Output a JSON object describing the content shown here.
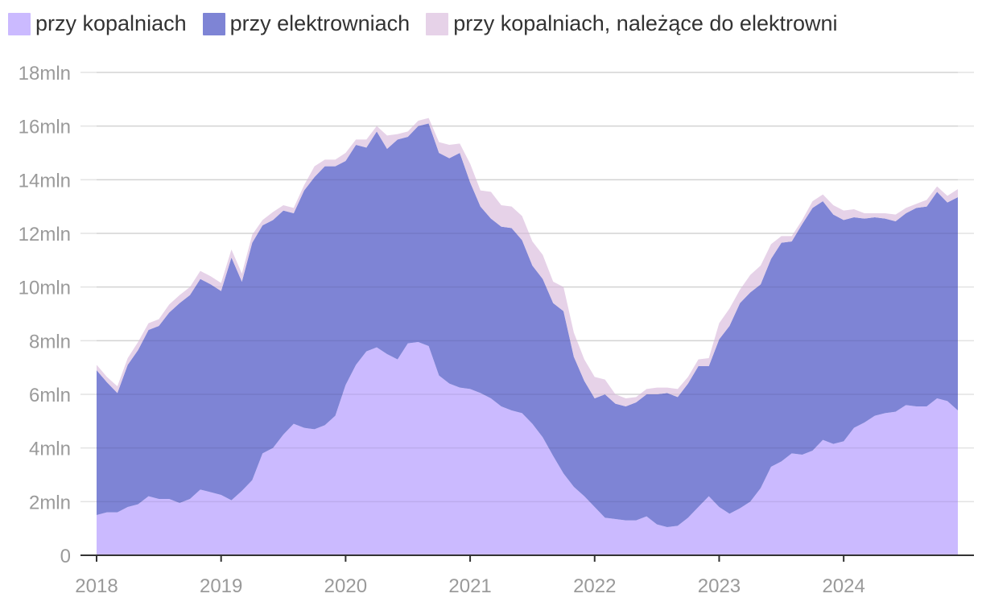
{
  "chart_data": {
    "type": "area",
    "stacked": true,
    "title": "",
    "xlabel": "",
    "ylabel": "",
    "ylim": [
      0,
      18
    ],
    "xlim": [
      2018.0,
      2024.917
    ],
    "y_ticks": [
      {
        "value": 0,
        "label": "0"
      },
      {
        "value": 2,
        "label": "2mln"
      },
      {
        "value": 4,
        "label": "4mln"
      },
      {
        "value": 6,
        "label": "6mln"
      },
      {
        "value": 8,
        "label": "8mln"
      },
      {
        "value": 10,
        "label": "10mln"
      },
      {
        "value": 12,
        "label": "12mln"
      },
      {
        "value": 14,
        "label": "14mln"
      },
      {
        "value": 16,
        "label": "16mln"
      },
      {
        "value": 18,
        "label": "18mln"
      }
    ],
    "x_ticks": [
      {
        "value": 2018,
        "label": "2018"
      },
      {
        "value": 2019,
        "label": "2019"
      },
      {
        "value": 2020,
        "label": "2020"
      },
      {
        "value": 2021,
        "label": "2021"
      },
      {
        "value": 2022,
        "label": "2022"
      },
      {
        "value": 2023,
        "label": "2023"
      },
      {
        "value": 2024,
        "label": "2024"
      }
    ],
    "legend_position": "top-left",
    "series": [
      {
        "name": "przy kopalniach",
        "color": "#cbbaff",
        "x": [
          2018.0,
          2018.083,
          2018.167,
          2018.25,
          2018.333,
          2018.417,
          2018.5,
          2018.583,
          2018.667,
          2018.75,
          2018.833,
          2018.917,
          2019.0,
          2019.083,
          2019.167,
          2019.25,
          2019.333,
          2019.417,
          2019.5,
          2019.583,
          2019.667,
          2019.75,
          2019.833,
          2019.917,
          2020.0,
          2020.083,
          2020.167,
          2020.25,
          2020.333,
          2020.417,
          2020.5,
          2020.583,
          2020.667,
          2020.75,
          2020.833,
          2020.917,
          2021.0,
          2021.083,
          2021.167,
          2021.25,
          2021.333,
          2021.417,
          2021.5,
          2021.583,
          2021.667,
          2021.75,
          2021.833,
          2021.917,
          2022.0,
          2022.083,
          2022.167,
          2022.25,
          2022.333,
          2022.417,
          2022.5,
          2022.583,
          2022.667,
          2022.75,
          2022.833,
          2022.917,
          2023.0,
          2023.083,
          2023.167,
          2023.25,
          2023.333,
          2023.417,
          2023.5,
          2023.583,
          2023.667,
          2023.75,
          2023.833,
          2023.917,
          2024.0,
          2024.083,
          2024.167,
          2024.25,
          2024.333,
          2024.417,
          2024.5,
          2024.583,
          2024.667,
          2024.75,
          2024.833,
          2024.917
        ],
        "values": [
          1.5,
          1.6,
          1.6,
          1.8,
          1.9,
          2.2,
          2.1,
          2.1,
          1.95,
          2.1,
          2.45,
          2.35,
          2.25,
          2.05,
          2.4,
          2.8,
          3.8,
          4.0,
          4.5,
          4.9,
          4.75,
          4.7,
          4.85,
          5.2,
          6.35,
          7.1,
          7.6,
          7.75,
          7.5,
          7.3,
          7.9,
          7.95,
          7.8,
          6.7,
          6.4,
          6.25,
          6.2,
          6.05,
          5.85,
          5.55,
          5.4,
          5.3,
          4.9,
          4.4,
          3.7,
          3.05,
          2.55,
          2.2,
          1.8,
          1.4,
          1.35,
          1.3,
          1.3,
          1.45,
          1.15,
          1.05,
          1.1,
          1.4,
          1.8,
          2.2,
          1.8,
          1.55,
          1.75,
          2.0,
          2.5,
          3.3,
          3.5,
          3.8,
          3.75,
          3.9,
          4.3,
          4.15,
          4.25,
          4.75,
          4.95,
          5.2,
          5.3,
          5.35,
          5.6,
          5.55,
          5.55,
          5.85,
          5.75,
          5.4
        ]
      },
      {
        "name": "przy elektrowniach",
        "color": "#7e84d5",
        "x": [
          2018.0,
          2018.083,
          2018.167,
          2018.25,
          2018.333,
          2018.417,
          2018.5,
          2018.583,
          2018.667,
          2018.75,
          2018.833,
          2018.917,
          2019.0,
          2019.083,
          2019.167,
          2019.25,
          2019.333,
          2019.417,
          2019.5,
          2019.583,
          2019.667,
          2019.75,
          2019.833,
          2019.917,
          2020.0,
          2020.083,
          2020.167,
          2020.25,
          2020.333,
          2020.417,
          2020.5,
          2020.583,
          2020.667,
          2020.75,
          2020.833,
          2020.917,
          2021.0,
          2021.083,
          2021.167,
          2021.25,
          2021.333,
          2021.417,
          2021.5,
          2021.583,
          2021.667,
          2021.75,
          2021.833,
          2021.917,
          2022.0,
          2022.083,
          2022.167,
          2022.25,
          2022.333,
          2022.417,
          2022.5,
          2022.583,
          2022.667,
          2022.75,
          2022.833,
          2022.917,
          2023.0,
          2023.083,
          2023.167,
          2023.25,
          2023.333,
          2023.417,
          2023.5,
          2023.583,
          2023.667,
          2023.75,
          2023.833,
          2023.917,
          2024.0,
          2024.083,
          2024.167,
          2024.25,
          2024.333,
          2024.417,
          2024.5,
          2024.583,
          2024.667,
          2024.75,
          2024.833,
          2024.917
        ],
        "values": [
          5.4,
          4.85,
          4.45,
          5.3,
          5.75,
          6.2,
          6.45,
          6.95,
          7.45,
          7.6,
          7.85,
          7.75,
          7.6,
          9.05,
          7.8,
          8.85,
          8.5,
          8.5,
          8.35,
          7.85,
          8.85,
          9.4,
          9.65,
          9.3,
          8.35,
          8.2,
          7.6,
          8.05,
          7.65,
          8.2,
          7.7,
          8.05,
          8.3,
          8.3,
          8.4,
          8.75,
          7.7,
          6.95,
          6.7,
          6.7,
          6.8,
          6.45,
          5.9,
          5.9,
          5.7,
          6.05,
          4.85,
          4.3,
          4.05,
          4.6,
          4.3,
          4.25,
          4.4,
          4.55,
          4.85,
          5.0,
          4.8,
          5.0,
          5.25,
          4.85,
          6.25,
          7.0,
          7.65,
          7.8,
          7.6,
          7.75,
          8.15,
          7.9,
          8.6,
          9.05,
          8.9,
          8.55,
          8.25,
          7.85,
          7.6,
          7.4,
          7.25,
          7.1,
          7.15,
          7.4,
          7.45,
          7.7,
          7.4,
          7.95
        ]
      },
      {
        "name": "przy kopalniach, należące do elektrowni",
        "color": "#e6d2e8",
        "x": [
          2018.0,
          2018.083,
          2018.167,
          2018.25,
          2018.333,
          2018.417,
          2018.5,
          2018.583,
          2018.667,
          2018.75,
          2018.833,
          2018.917,
          2019.0,
          2019.083,
          2019.167,
          2019.25,
          2019.333,
          2019.417,
          2019.5,
          2019.583,
          2019.667,
          2019.75,
          2019.833,
          2019.917,
          2020.0,
          2020.083,
          2020.167,
          2020.25,
          2020.333,
          2020.417,
          2020.5,
          2020.583,
          2020.667,
          2020.75,
          2020.833,
          2020.917,
          2021.0,
          2021.083,
          2021.167,
          2021.25,
          2021.333,
          2021.417,
          2021.5,
          2021.583,
          2021.667,
          2021.75,
          2021.833,
          2021.917,
          2022.0,
          2022.083,
          2022.167,
          2022.25,
          2022.333,
          2022.417,
          2022.5,
          2022.583,
          2022.667,
          2022.75,
          2022.833,
          2022.917,
          2023.0,
          2023.083,
          2023.167,
          2023.25,
          2023.333,
          2023.417,
          2023.5,
          2023.583,
          2023.667,
          2023.75,
          2023.833,
          2023.917,
          2024.0,
          2024.083,
          2024.167,
          2024.25,
          2024.333,
          2024.417,
          2024.5,
          2024.583,
          2024.667,
          2024.75,
          2024.833,
          2024.917
        ],
        "values": [
          0.2,
          0.2,
          0.25,
          0.25,
          0.3,
          0.25,
          0.25,
          0.3,
          0.3,
          0.3,
          0.3,
          0.3,
          0.3,
          0.3,
          0.3,
          0.3,
          0.2,
          0.3,
          0.2,
          0.2,
          0.2,
          0.4,
          0.25,
          0.25,
          0.3,
          0.2,
          0.3,
          0.2,
          0.5,
          0.2,
          0.2,
          0.2,
          0.2,
          0.4,
          0.5,
          0.35,
          0.7,
          0.6,
          1.0,
          0.8,
          0.8,
          0.9,
          0.9,
          0.9,
          0.8,
          0.9,
          0.9,
          0.8,
          0.8,
          0.55,
          0.35,
          0.3,
          0.2,
          0.2,
          0.25,
          0.2,
          0.3,
          0.25,
          0.25,
          0.3,
          0.6,
          0.65,
          0.5,
          0.65,
          0.7,
          0.55,
          0.25,
          0.2,
          0.15,
          0.25,
          0.25,
          0.35,
          0.35,
          0.3,
          0.2,
          0.15,
          0.2,
          0.25,
          0.2,
          0.15,
          0.25,
          0.2,
          0.25,
          0.3
        ]
      }
    ]
  }
}
